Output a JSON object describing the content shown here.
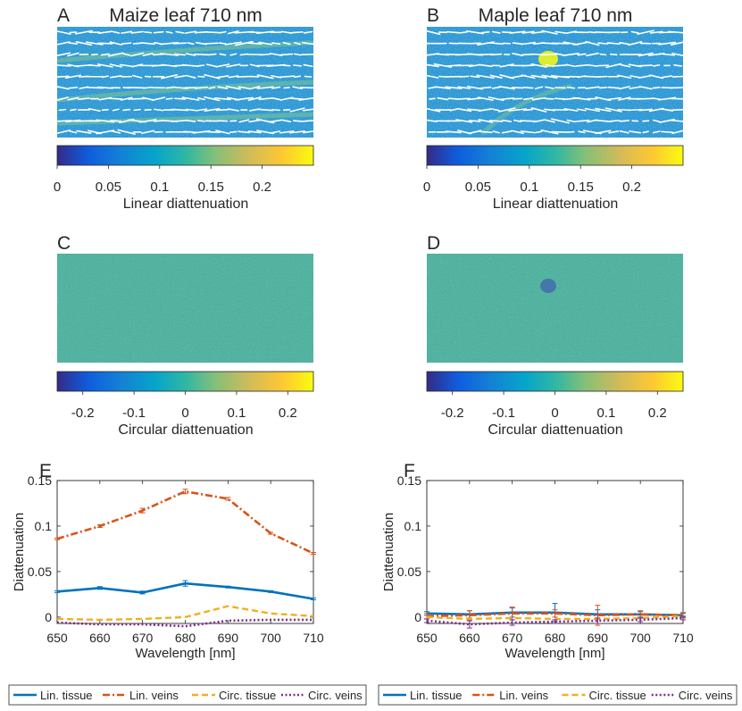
{
  "figure": {
    "panels": {
      "A": {
        "letter": "A",
        "title": "Maize leaf 710 nm"
      },
      "B": {
        "letter": "B",
        "title": "Maple leaf 710 nm"
      },
      "C": {
        "letter": "C",
        "title": ""
      },
      "D": {
        "letter": "D",
        "title": ""
      }
    },
    "colorbars": {
      "linear": {
        "label": "Linear diattenuation",
        "ticks": [
          "0",
          "0.05",
          "0.1",
          "0.15",
          "0.2"
        ],
        "range": [
          0,
          0.25
        ]
      },
      "circular": {
        "label": "Circular diattenuation",
        "ticks": [
          "-0.2",
          "-0.1",
          "0",
          "0.1",
          "0.2"
        ],
        "range": [
          -0.25,
          0.25
        ]
      }
    },
    "colors": {
      "lin_tissue": "#0072BD",
      "lin_veins": "#D95319",
      "circ_tissue": "#EDB120",
      "circ_veins": "#7E2F8E",
      "map_background": "#1f8fd8",
      "circ_background": "#4aae98"
    }
  },
  "chart_data": [
    {
      "panel": "E",
      "type": "line",
      "xlabel": "Wavelength [nm]",
      "ylabel": "Diattenuation",
      "xlim": [
        650,
        710
      ],
      "ylim": [
        -0.007,
        0.15
      ],
      "x": [
        650,
        660,
        670,
        680,
        690,
        700,
        710
      ],
      "xticks": [
        "650",
        "660",
        "670",
        "680",
        "690",
        "700",
        "710"
      ],
      "yticks": [
        "0",
        "0.05",
        "0.1",
        "0.15"
      ],
      "series": [
        {
          "name": "Lin. tissue",
          "values": [
            0.028,
            0.032,
            0.027,
            0.037,
            0.033,
            0.028,
            0.02
          ],
          "errors": [
            0.001,
            0.0015,
            0.0015,
            0.003,
            0.001,
            0.001,
            0.001
          ]
        },
        {
          "name": "Lin. veins",
          "values": [
            0.086,
            0.1,
            0.117,
            0.138,
            0.13,
            0.092,
            0.07
          ],
          "errors": [
            0.001,
            0.0015,
            0.0025,
            0.0025,
            0.0015,
            0.001,
            0.001
          ]
        },
        {
          "name": "Circ. tissue",
          "values": [
            -0.002,
            -0.003,
            -0.002,
            0.0,
            0.012,
            0.004,
            0.001
          ],
          "errors": [
            0,
            0,
            0,
            0,
            0,
            0,
            0
          ]
        },
        {
          "name": "Circ. veins",
          "values": [
            -0.006,
            -0.008,
            -0.008,
            -0.01,
            -0.004,
            -0.003,
            -0.003
          ],
          "errors": [
            0,
            0,
            0,
            0,
            0,
            0,
            0
          ]
        }
      ]
    },
    {
      "panel": "F",
      "type": "line",
      "xlabel": "Wavelength [nm]",
      "ylabel": "Diattenuation",
      "xlim": [
        650,
        710
      ],
      "ylim": [
        -0.007,
        0.15
      ],
      "x": [
        650,
        660,
        670,
        680,
        690,
        700,
        710
      ],
      "xticks": [
        "650",
        "660",
        "670",
        "680",
        "690",
        "700",
        "710"
      ],
      "yticks": [
        "0",
        "0.05",
        "0.1",
        "0.15"
      ],
      "series": [
        {
          "name": "Lin. tissue",
          "values": [
            0.004,
            0.003,
            0.005,
            0.005,
            0.003,
            0.003,
            0.002
          ],
          "errors": [
            0.002,
            0.004,
            0.005,
            0.01,
            0.005,
            0.003,
            0.002
          ]
        },
        {
          "name": "Lin. veins",
          "values": [
            0.001,
            0.002,
            0.004,
            0.004,
            0.002,
            0.003,
            0.002
          ],
          "errors": [
            0.003,
            0.005,
            0.007,
            0.004,
            0.011,
            0.004,
            0.003
          ]
        },
        {
          "name": "Circ. tissue",
          "values": [
            0.0,
            -0.002,
            -0.001,
            -0.002,
            -0.002,
            -0.001,
            0.001
          ],
          "errors": [
            0,
            0,
            0,
            0,
            0,
            0,
            0
          ]
        },
        {
          "name": "Circ. veins",
          "values": [
            -0.004,
            -0.008,
            -0.006,
            -0.005,
            -0.004,
            -0.003,
            -0.001
          ],
          "errors": [
            0.002,
            0.004,
            0.003,
            0.002,
            0.003,
            0.002,
            0.002
          ]
        }
      ]
    }
  ]
}
